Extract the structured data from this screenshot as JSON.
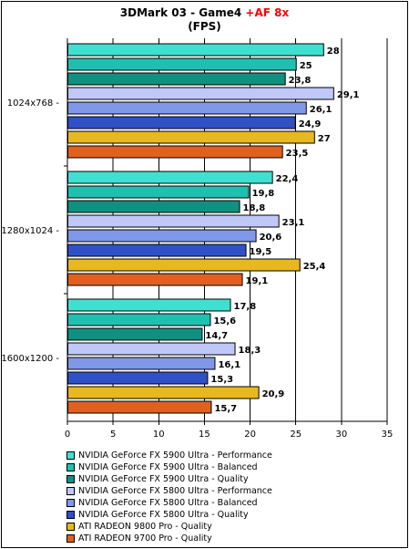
{
  "chart_data": {
    "type": "bar",
    "orientation": "horizontal",
    "title": "3DMark 03 - Game4",
    "title_accent": "+AF 8x",
    "subtitle": "(FPS)",
    "categories": [
      "1024x768",
      "1280x1024",
      "1600x1200"
    ],
    "xlim": [
      0,
      35
    ],
    "xticks": [
      0,
      5,
      10,
      15,
      20,
      25,
      30,
      35
    ],
    "grid": true,
    "legend_position": "bottom",
    "series": [
      {
        "name": "NVIDIA GeForce FX 5900 Ultra - Performance",
        "color": "#40e0d0",
        "values": [
          28,
          22.4,
          17.8
        ],
        "labels": [
          "28",
          "22,4",
          "17,8"
        ]
      },
      {
        "name": "NVIDIA GeForce FX 5900 Ultra - Balanced",
        "color": "#20c0b0",
        "values": [
          25,
          19.8,
          15.6
        ],
        "labels": [
          "25",
          "19,8",
          "15,6"
        ]
      },
      {
        "name": "NVIDIA GeForce FX 5900 Ultra - Quality",
        "color": "#109080",
        "values": [
          23.8,
          18.8,
          14.7
        ],
        "labels": [
          "23,8",
          "18,8",
          "14,7"
        ]
      },
      {
        "name": "NVIDIA GeForce FX 5800 Ultra - Performance",
        "color": "#c0c8f8",
        "values": [
          29.1,
          23.1,
          18.3
        ],
        "labels": [
          "29,1",
          "23,1",
          "18,3"
        ]
      },
      {
        "name": "NVIDIA GeForce FX 5800 Ultra - Balanced",
        "color": "#8098e8",
        "values": [
          26.1,
          20.6,
          16.1
        ],
        "labels": [
          "26,1",
          "20,6",
          "16,1"
        ]
      },
      {
        "name": "NVIDIA GeForce FX 5800 Ultra - Quality",
        "color": "#3050c8",
        "values": [
          24.9,
          19.5,
          15.3
        ],
        "labels": [
          "24,9",
          "19,5",
          "15,3"
        ]
      },
      {
        "name": "ATI RADEON 9800 Pro - Quality",
        "color": "#e8b820",
        "values": [
          27,
          25.4,
          20.9
        ],
        "labels": [
          "27",
          "25,4",
          "20,9"
        ]
      },
      {
        "name": "ATI RADEON 9700 Pro - Quality",
        "color": "#e06020",
        "values": [
          23.5,
          19.1,
          15.7
        ],
        "labels": [
          "23,5",
          "19,1",
          "15,7"
        ]
      }
    ]
  }
}
